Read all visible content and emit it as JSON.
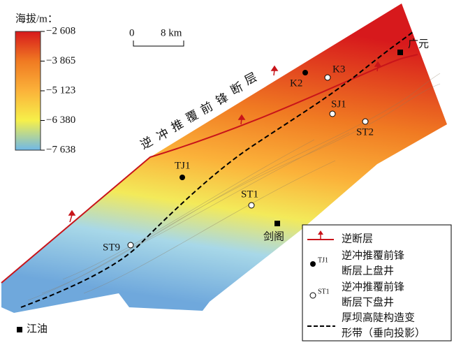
{
  "legend_title": "海拔/m：",
  "colorbar": {
    "ticks": [
      {
        "value": -2608,
        "label": "−2 608"
      },
      {
        "value": -3865,
        "label": "−3 865"
      },
      {
        "value": -5123,
        "label": "−5 123"
      },
      {
        "value": -6380,
        "label": "−6 380"
      },
      {
        "value": -7638,
        "label": "−7 638"
      }
    ],
    "colors": [
      "#d7191c",
      "#f07a22",
      "#fbb23a",
      "#f6f04a",
      "#6fb8e8"
    ]
  },
  "scale_bar": [
    "0",
    "8 km"
  ],
  "fault_label": "逆冲推覆前锋断层",
  "wells_upper": [
    "K2",
    "TJ1"
  ],
  "wells_lower": [
    "K3",
    "SJ1",
    "ST2",
    "ST1",
    "ST9"
  ],
  "cities": [
    "广元",
    "剑阁",
    "江油"
  ],
  "legend": [
    [
      "逆断层"
    ],
    [
      "逆冲推覆前锋",
      "断层上盘井"
    ],
    [
      "逆冲推覆前锋",
      "断层下盘井"
    ],
    [
      "厚坝高陡构造变",
      "形带（垂向投影）"
    ]
  ],
  "legend_icons": [
    "TJ1",
    "ST1"
  ]
}
